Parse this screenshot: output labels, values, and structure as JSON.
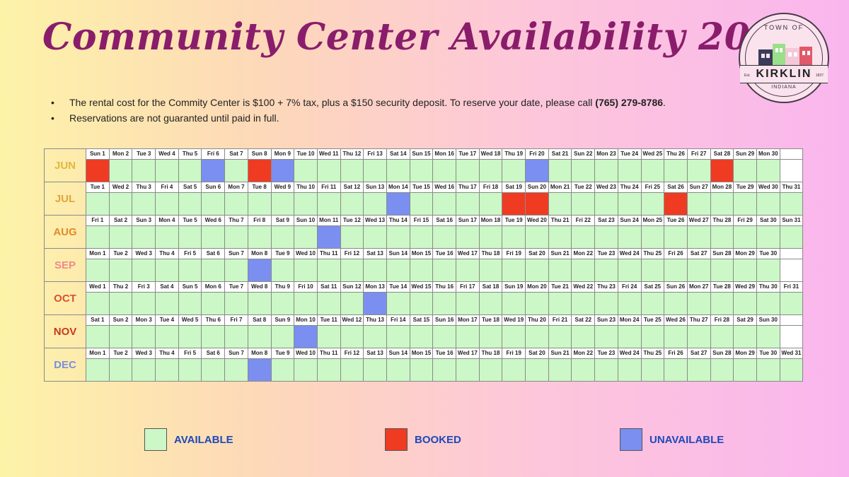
{
  "title": "Community Center Availability 2025",
  "logo": {
    "top_text": "TOWN OF",
    "town": "KIRKLIN",
    "state": "INDIANA",
    "est": "Est.",
    "year": "1837"
  },
  "notes": [
    {
      "text": "The rental cost for the Commity Center is $100 + 7% tax, plus a $150 security deposit. To reserve your date, please call ",
      "bold": "(765) 279-8786",
      "suffix": "."
    },
    {
      "text": "Reservations are not guaranted until paid in full.",
      "bold": "",
      "suffix": ""
    }
  ],
  "colors": {
    "available": "#ccf7c6",
    "booked": "#ef3b22",
    "unavailable": "#7b8ff0",
    "title": "#8a1d6b",
    "legend_text": "#1f49b8"
  },
  "legend": [
    {
      "status": "available",
      "label": "AVAILABLE"
    },
    {
      "status": "booked",
      "label": "BOOKED"
    },
    {
      "status": "unavailable",
      "label": "UNAVAILABLE"
    }
  ],
  "months": [
    {
      "name": "JUN",
      "color": "#e2b83a",
      "days": [
        "Sun 1",
        "Mon 2",
        "Tue 3",
        "Wed 4",
        "Thu 5",
        "Fri 6",
        "Sat 7",
        "Sun 8",
        "Mon 9",
        "Tue 10",
        "Wed 11",
        "Thu 12",
        "Fri 13",
        "Sat 14",
        "Sun 15",
        "Mon 16",
        "Tue 17",
        "Wed 18",
        "Thu 19",
        "Fri 20",
        "Sat 21",
        "Sun 22",
        "Mon 23",
        "Tue 24",
        "Wed 25",
        "Thu 26",
        "Fri 27",
        "Sat 28",
        "Sun 29",
        "Mon 30"
      ],
      "booked": [
        1,
        8,
        28
      ],
      "unavailable": [
        6,
        9,
        20
      ]
    },
    {
      "name": "JUL",
      "color": "#e2a43a",
      "days": [
        "Tue 1",
        "Wed 2",
        "Thu 3",
        "Fri 4",
        "Sat 5",
        "Sun 6",
        "Mon 7",
        "Tue 8",
        "Wed 9",
        "Thu 10",
        "Fri 11",
        "Sat 12",
        "Sun 13",
        "Mon 14",
        "Tue 15",
        "Wed 16",
        "Thu 17",
        "Fri 18",
        "Sat 19",
        "Sun 20",
        "Mon 21",
        "Tue 22",
        "Wed 23",
        "Thu 24",
        "Fri 25",
        "Sat 26",
        "Sun 27",
        "Mon 28",
        "Tue 29",
        "Wed 30",
        "Thu 31"
      ],
      "booked": [
        19,
        20,
        26
      ],
      "unavailable": [
        14
      ]
    },
    {
      "name": "AUG",
      "color": "#e08a2a",
      "days": [
        "Fri 1",
        "Sat 2",
        "Sun 3",
        "Mon 4",
        "Tue 5",
        "Wed 6",
        "Thu 7",
        "Fri 8",
        "Sat 9",
        "Sun 10",
        "Mon 11",
        "Tue 12",
        "Wed 13",
        "Thu 14",
        "Fri 15",
        "Sat 16",
        "Sun 17",
        "Mon 18",
        "Tue 19",
        "Wed 20",
        "Thu 21",
        "Fri 22",
        "Sat 23",
        "Sun 24",
        "Mon 25",
        "Tue 26",
        "Wed 27",
        "Thu 28",
        "Fri 29",
        "Sat 30",
        "Sun 31"
      ],
      "booked": [],
      "unavailable": [
        11
      ]
    },
    {
      "name": "SEP",
      "color": "#f08a8a",
      "days": [
        "Mon 1",
        "Tue 2",
        "Wed 3",
        "Thu 4",
        "Fri 5",
        "Sat 6",
        "Sun 7",
        "Mon 8",
        "Tue 9",
        "Wed 10",
        "Thu 11",
        "Fri 12",
        "Sat 13",
        "Sun 14",
        "Mon 15",
        "Tue 16",
        "Wed 17",
        "Thu 18",
        "Fri 19",
        "Sat 20",
        "Sun 21",
        "Mon 22",
        "Tue 23",
        "Wed 24",
        "Thu 25",
        "Fri 26",
        "Sat 27",
        "Sun 28",
        "Mon 29",
        "Tue 30"
      ],
      "booked": [],
      "unavailable": [
        8
      ]
    },
    {
      "name": "OCT",
      "color": "#d8522e",
      "days": [
        "Wed 1",
        "Thu 2",
        "Fri 3",
        "Sat 4",
        "Sun 5",
        "Mon 6",
        "Tue 7",
        "Wed 8",
        "Thu 9",
        "Fri 10",
        "Sat 11",
        "Sun 12",
        "Mon 13",
        "Tue 14",
        "Wed 15",
        "Thu 16",
        "Fri 17",
        "Sat 18",
        "Sun 19",
        "Mon 20",
        "Tue 21",
        "Wed 22",
        "Thu 23",
        "Fri 24",
        "Sat 25",
        "Sun 26",
        "Mon 27",
        "Tue 28",
        "Wed 29",
        "Thu 30",
        "Fri 31"
      ],
      "booked": [],
      "unavailable": [
        13
      ]
    },
    {
      "name": "NOV",
      "color": "#c73a1e",
      "days": [
        "Sat 1",
        "Sun 2",
        "Mon 3",
        "Tue 4",
        "Wed 5",
        "Thu 6",
        "Fri 7",
        "Sat 8",
        "Sun 9",
        "Mon 10",
        "Tue 11",
        "Wed 12",
        "Thu 13",
        "Fri 14",
        "Sat 15",
        "Sun 16",
        "Mon 17",
        "Tue 18",
        "Wed 19",
        "Thu 20",
        "Fri 21",
        "Sat 22",
        "Sun 23",
        "Mon 24",
        "Tue 25",
        "Wed 26",
        "Thu 27",
        "Fri 28",
        "Sat 29",
        "Sun 30"
      ],
      "booked": [],
      "unavailable": [
        10
      ]
    },
    {
      "name": "DEC",
      "color": "#7b8fe0",
      "days": [
        "Mon 1",
        "Tue 2",
        "Wed 3",
        "Thu 4",
        "Fri 5",
        "Sat 6",
        "Sun 7",
        "Mon 8",
        "Tue 9",
        "Wed 10",
        "Thu 11",
        "Fri 12",
        "Sat 13",
        "Sun 14",
        "Mon 15",
        "Tue 16",
        "Wed 17",
        "Thu 18",
        "Fri 19",
        "Sat 20",
        "Sun 21",
        "Mon 22",
        "Tue 23",
        "Wed 24",
        "Thu 25",
        "Fri 26",
        "Sat 27",
        "Sun 28",
        "Mon 29",
        "Tue 30",
        "Wed 31"
      ],
      "booked": [],
      "unavailable": [
        8
      ]
    }
  ]
}
